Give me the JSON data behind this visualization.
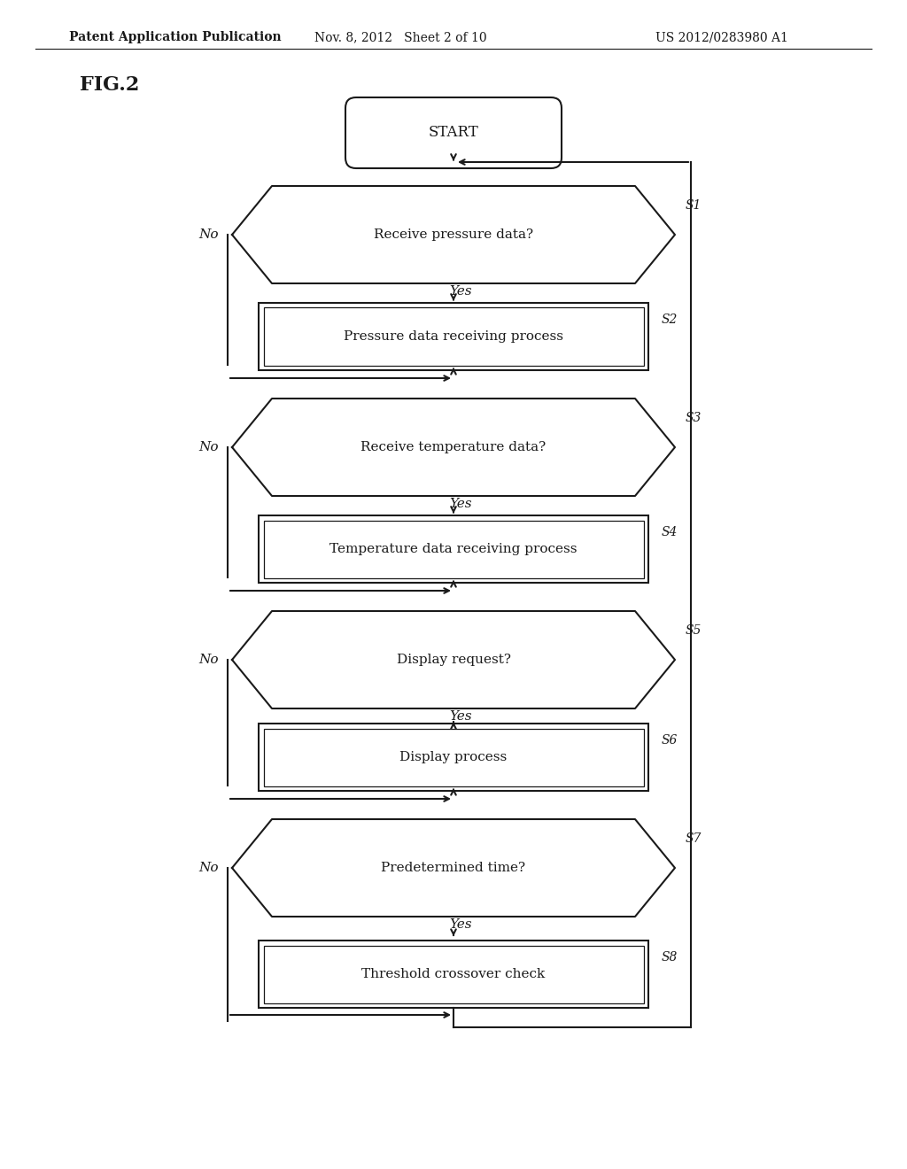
{
  "bg_color": "#ffffff",
  "header_left": "Patent Application Publication",
  "header_mid": "Nov. 8, 2012   Sheet 2 of 10",
  "header_right": "US 2012/0283980 A1",
  "fig_label": "FIG.2",
  "start_label": "START",
  "nodes": [
    {
      "id": "S1",
      "type": "hexagon",
      "label": "Receive pressure data?",
      "label_id": "S1",
      "yes_label": "Yes",
      "no_label": "No"
    },
    {
      "id": "S2",
      "type": "process",
      "label": "Pressure data receiving process",
      "label_id": "S2"
    },
    {
      "id": "S3",
      "type": "hexagon",
      "label": "Receive temperature data?",
      "label_id": "S3",
      "yes_label": "Yes",
      "no_label": "No"
    },
    {
      "id": "S4",
      "type": "process",
      "label": "Temperature data receiving process",
      "label_id": "S4"
    },
    {
      "id": "S5",
      "type": "hexagon",
      "label": "Display request?",
      "label_id": "S5",
      "yes_label": "Yes",
      "no_label": "No"
    },
    {
      "id": "S6",
      "type": "process",
      "label": "Display process",
      "label_id": "S6"
    },
    {
      "id": "S7",
      "type": "hexagon",
      "label": "Predetermined time?",
      "label_id": "S7",
      "yes_label": "Yes",
      "no_label": "No"
    },
    {
      "id": "S8",
      "type": "process",
      "label": "Threshold crossover check",
      "label_id": "S8"
    }
  ],
  "line_color": "#1a1a1a",
  "line_width": 1.5,
  "text_color": "#1a1a1a",
  "font_size": 11,
  "font_size_header": 10,
  "font_size_fig": 16
}
